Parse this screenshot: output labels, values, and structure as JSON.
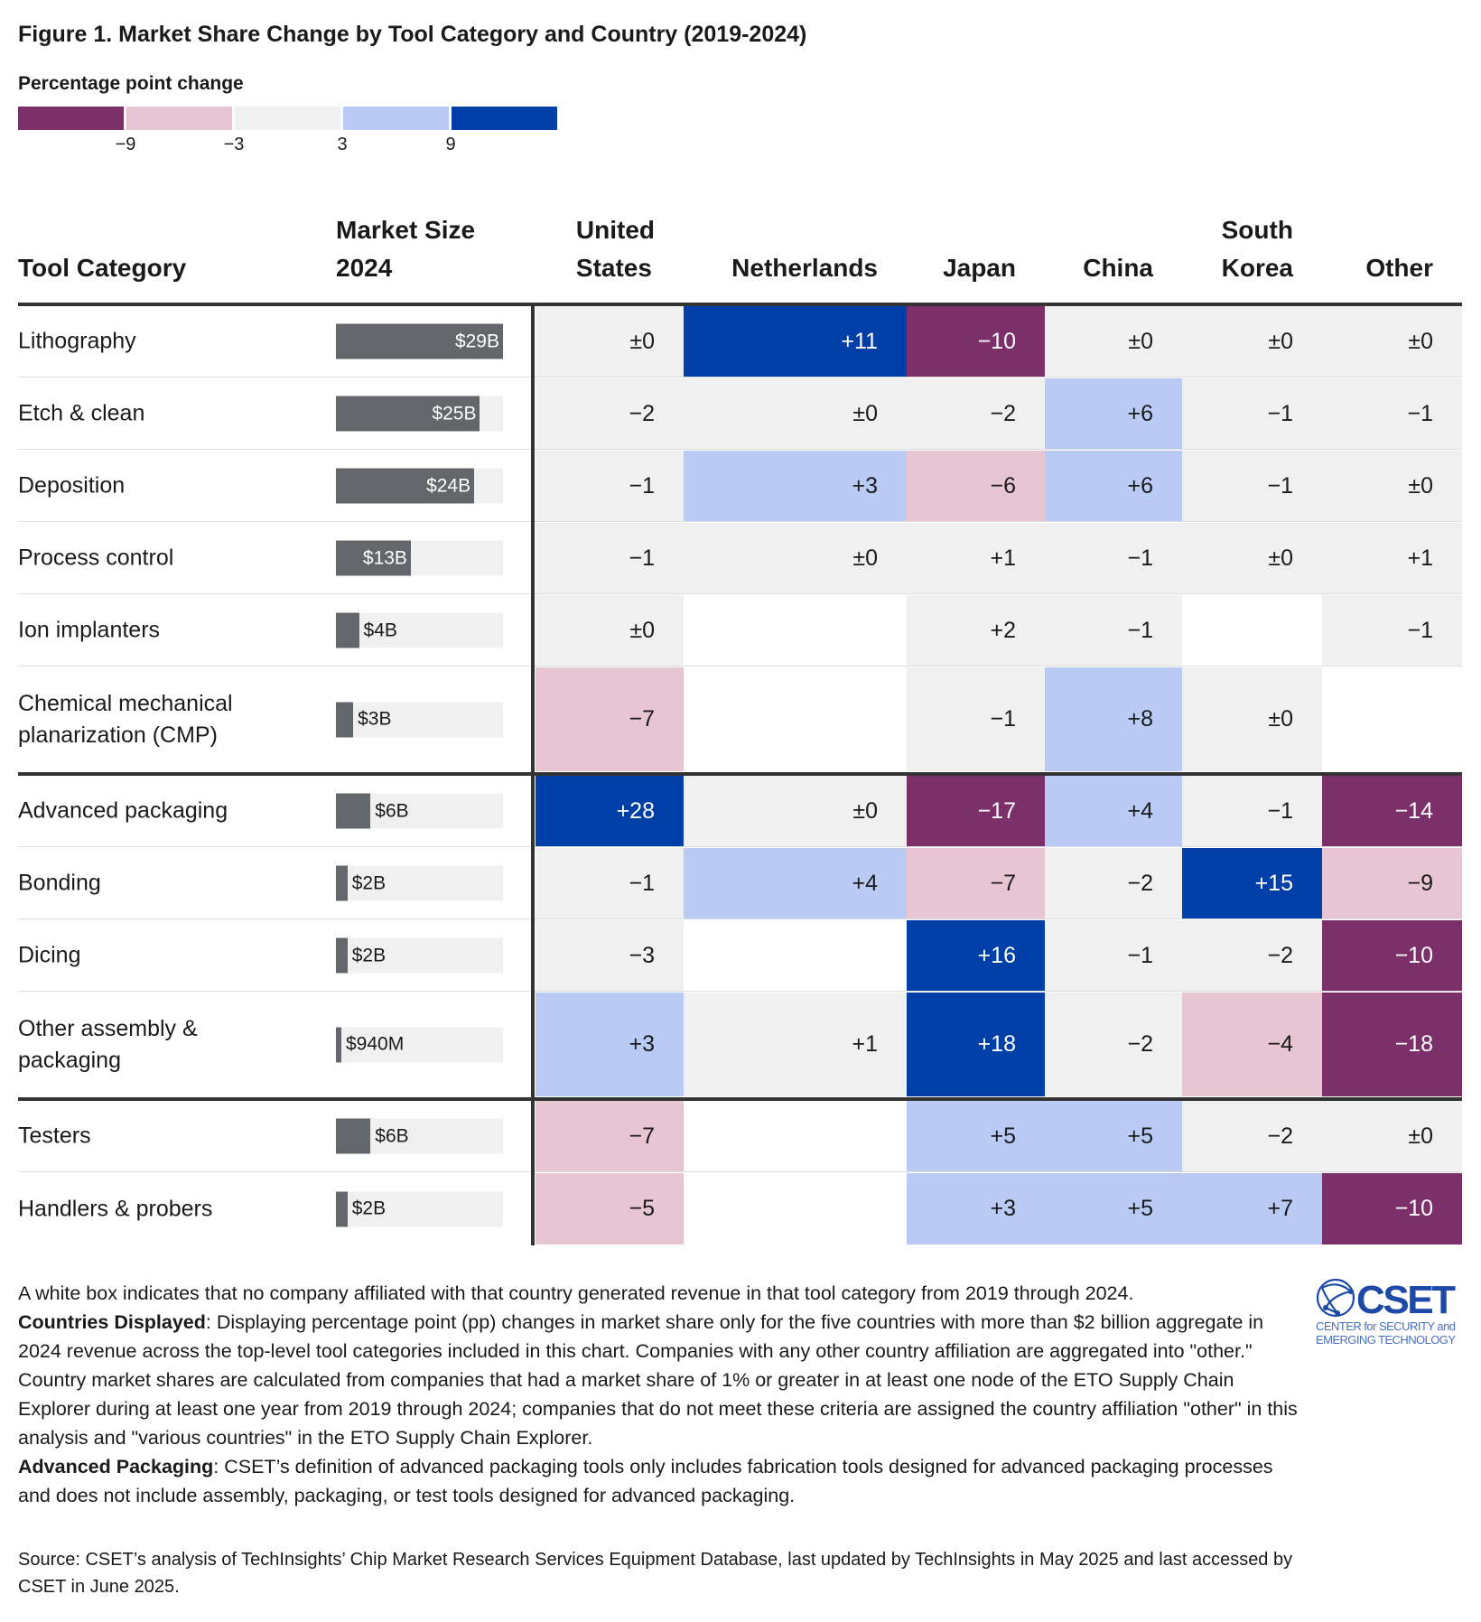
{
  "chart_data": {
    "type": "heatmap",
    "title": "Figure 1. Market Share Change by Tool Category and Country (2019-2024)",
    "legend": {
      "title": "Percentage point change",
      "ticks": [
        "−9",
        "−3",
        "3",
        "9"
      ],
      "colors": [
        "#7b3069",
        "#e8c5d2",
        "#f0f0f0",
        "#b9cbf5",
        "#003fa8"
      ]
    },
    "headers": {
      "category": "Tool Category",
      "market_size": [
        "Market Size",
        "2024"
      ],
      "countries": [
        [
          "United",
          "States"
        ],
        [
          "",
          "Netherlands"
        ],
        [
          "",
          "Japan"
        ],
        [
          "",
          "China"
        ],
        [
          "South",
          "Korea"
        ],
        [
          "",
          "Other"
        ]
      ]
    },
    "groups": [
      [
        {
          "category": "Lithography",
          "market_label": "$29B",
          "market_value_b": 29,
          "values": [
            "±0",
            "+11",
            "−10",
            "±0",
            "±0",
            "±0"
          ]
        },
        {
          "category": "Etch & clean",
          "market_label": "$25B",
          "market_value_b": 25,
          "values": [
            "−2",
            "±0",
            "−2",
            "+6",
            "−1",
            "−1"
          ]
        },
        {
          "category": "Deposition",
          "market_label": "$24B",
          "market_value_b": 24,
          "values": [
            "−1",
            "+3",
            "−6",
            "+6",
            "−1",
            "±0"
          ]
        },
        {
          "category": "Process control",
          "market_label": "$13B",
          "market_value_b": 13,
          "values": [
            "−1",
            "±0",
            "+1",
            "−1",
            "±0",
            "+1"
          ]
        },
        {
          "category": "Ion implanters",
          "market_label": "$4B",
          "market_value_b": 4,
          "values": [
            "±0",
            null,
            "+2",
            "−1",
            null,
            "−1"
          ]
        },
        {
          "category": "Chemical mechanical planarization (CMP)",
          "market_label": "$3B",
          "market_value_b": 3,
          "values": [
            "−7",
            null,
            "−1",
            "+8",
            "±0",
            null
          ]
        }
      ],
      [
        {
          "category": "Advanced packaging",
          "market_label": "$6B",
          "market_value_b": 6,
          "values": [
            "+28",
            "±0",
            "−17",
            "+4",
            "−1",
            "−14"
          ]
        },
        {
          "category": "Bonding",
          "market_label": "$2B",
          "market_value_b": 2,
          "values": [
            "−1",
            "+4",
            "−7",
            "−2",
            "+15",
            "−9"
          ]
        },
        {
          "category": "Dicing",
          "market_label": "$2B",
          "market_value_b": 2,
          "values": [
            "−3",
            null,
            "+16",
            "−1",
            "−2",
            "−10"
          ]
        },
        {
          "category": "Other assembly & packaging",
          "market_label": "$940M",
          "market_value_b": 0.94,
          "values": [
            "+3",
            "+1",
            "+18",
            "−2",
            "−4",
            "−18"
          ]
        }
      ],
      [
        {
          "category": "Testers",
          "market_label": "$6B",
          "market_value_b": 6,
          "values": [
            "−7",
            null,
            "+5",
            "+5",
            "−2",
            "±0"
          ]
        },
        {
          "category": "Handlers & probers",
          "market_label": "$2B",
          "market_value_b": 2,
          "values": [
            "−5",
            null,
            "+3",
            "+5",
            "+7",
            "−10"
          ]
        }
      ]
    ]
  },
  "notes": {
    "white_box": "A white box indicates that no company affiliated with that country generated revenue in that tool category from 2019 through 2024.",
    "countries_label": "Countries Displayed",
    "countries_text": ": Displaying percentage point (pp) changes in market share only for the five countries with more than $2 billion aggregate in 2024 revenue across the top-level tool categories included in this chart. Companies with any other country affiliation are aggregated into \"other.\" Country market shares are calculated from companies that had a market share of 1% or greater in at least one node of the ETO Supply Chain Explorer during at least one year from 2019 through 2024; companies that do not meet these criteria are assigned the country affiliation \"other\" in this analysis and \"various countries\" in the ETO Supply Chain Explorer.",
    "adv_label": "Advanced Packaging",
    "adv_text": ": CSET’s definition of advanced packaging tools only includes fabrication tools designed for advanced packaging processes and does not include assembly, packaging, or test tools designed for advanced packaging.",
    "source": "Source: CSET’s analysis of TechInsights’ Chip Market Research Services Equipment Database, last updated by TechInsights in May 2025 and last accessed by CSET in June 2025."
  },
  "logo": {
    "name": "CSET",
    "line1": "CENTER for SECURITY and",
    "line2": "EMERGING TECHNOLOGY"
  }
}
